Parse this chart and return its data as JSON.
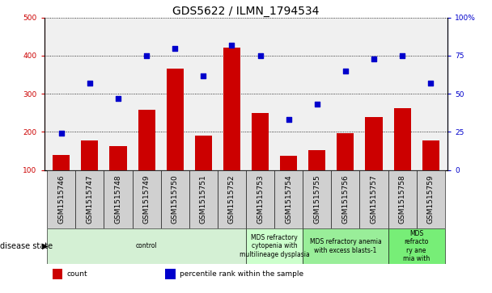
{
  "title": "GDS5622 / ILMN_1794534",
  "samples": [
    "GSM1515746",
    "GSM1515747",
    "GSM1515748",
    "GSM1515749",
    "GSM1515750",
    "GSM1515751",
    "GSM1515752",
    "GSM1515753",
    "GSM1515754",
    "GSM1515755",
    "GSM1515756",
    "GSM1515757",
    "GSM1515758",
    "GSM1515759"
  ],
  "counts": [
    140,
    177,
    162,
    257,
    365,
    190,
    422,
    250,
    137,
    153,
    197,
    238,
    262,
    178
  ],
  "percentile_ranks": [
    24,
    57,
    47,
    75,
    80,
    62,
    82,
    75,
    33,
    43,
    65,
    73,
    75,
    57
  ],
  "ylim_left": [
    100,
    500
  ],
  "ylim_right": [
    0,
    100
  ],
  "yticks_left": [
    100,
    200,
    300,
    400,
    500
  ],
  "yticks_right": [
    0,
    25,
    50,
    75,
    100
  ],
  "bar_color": "#cc0000",
  "dot_color": "#0000cc",
  "background_color": "#ffffff",
  "sample_bg_color": "#c8c8c8",
  "disease_groups": [
    {
      "label": "control",
      "start": 0,
      "end": 7,
      "color": "#d4f0d4"
    },
    {
      "label": "MDS refractory\ncytopenia with\nmultilineage dysplasia",
      "start": 7,
      "end": 9,
      "color": "#ccffcc"
    },
    {
      "label": "MDS refractory anemia\nwith excess blasts-1",
      "start": 9,
      "end": 12,
      "color": "#99ee99"
    },
    {
      "label": "MDS\nrefracto\nry ane\nmia with",
      "start": 12,
      "end": 14,
      "color": "#77ee77"
    }
  ],
  "legend_items": [
    {
      "label": "count",
      "color": "#cc0000"
    },
    {
      "label": "percentile rank within the sample",
      "color": "#0000cc"
    }
  ],
  "title_fontsize": 10,
  "tick_fontsize": 6.5,
  "label_fontsize": 7,
  "disease_fontsize": 5.5
}
